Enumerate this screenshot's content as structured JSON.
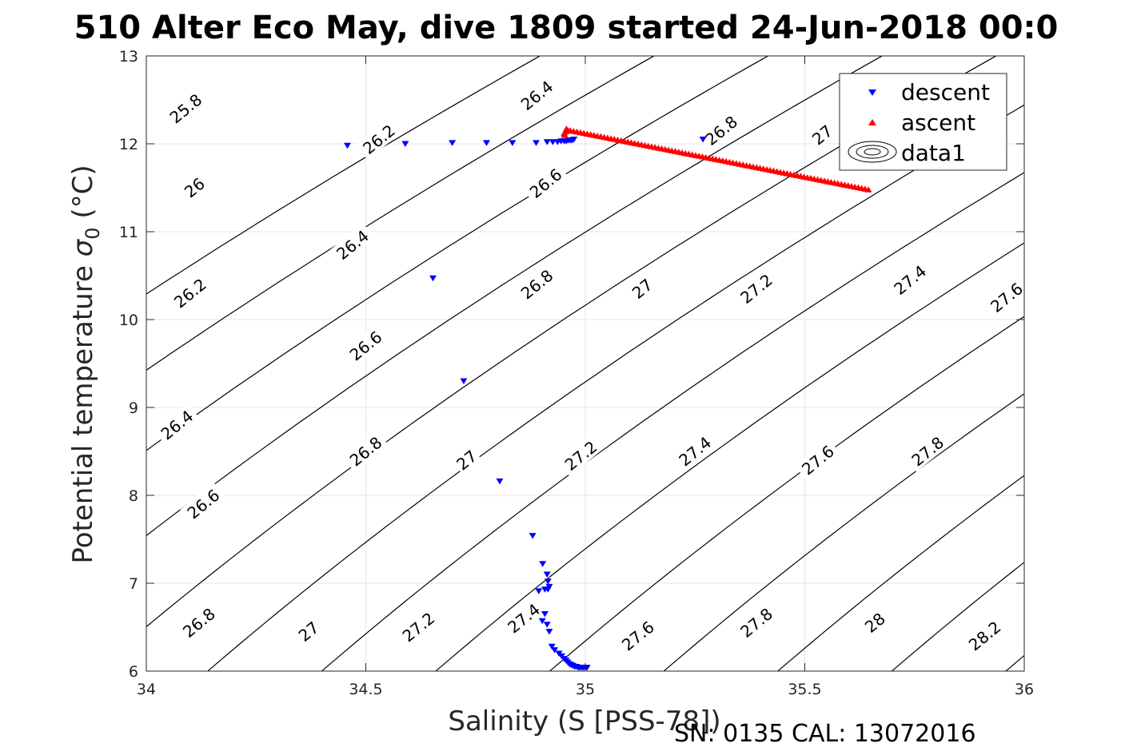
{
  "chart_data": {
    "type": "scatter",
    "title": "510 Alter Eco May, dive 1809 started 24-Jun-2018 00:0",
    "xlabel": "Salinity (S [PSS-78])",
    "ylabel_main": "Potential temperature ",
    "ylabel_sigma": "σ",
    "ylabel_sub": "0",
    "ylabel_unit": " (°C)",
    "footer": "SN: 0135  CAL: 13072016",
    "xlim": [
      34,
      36
    ],
    "ylim": [
      6,
      13
    ],
    "x_ticks": [
      34,
      34.5,
      35,
      35.5,
      36
    ],
    "x_tick_labels": [
      "34",
      "34.5",
      "35",
      "35.5",
      "36"
    ],
    "y_ticks": [
      6,
      7,
      8,
      9,
      10,
      11,
      12,
      13
    ],
    "y_tick_labels": [
      "6",
      "7",
      "8",
      "9",
      "10",
      "11",
      "12",
      "13"
    ],
    "grid": true,
    "legend_position": "top-right",
    "legend": [
      {
        "label": "descent",
        "marker": "triangle-down",
        "color": "#0000ff"
      },
      {
        "label": "ascent",
        "marker": "triangle-up",
        "color": "#ff0000"
      },
      {
        "label": "data1",
        "marker": "contour",
        "color": "#000000"
      }
    ],
    "colors": {
      "descent": "#0000ff",
      "ascent": "#ff0000",
      "contour": "#000000",
      "grid": "#e6e6e6"
    },
    "contour_levels": [
      25.8,
      26.0,
      26.2,
      26.4,
      26.6,
      26.8,
      27.0,
      27.2,
      27.4,
      27.6,
      27.8,
      28.0,
      28.2
    ],
    "contour_labels": [
      {
        "text": "25.8",
        "x": 34.09,
        "y": 12.4
      },
      {
        "text": "26",
        "x": 34.11,
        "y": 11.5
      },
      {
        "text": "26.2",
        "x": 34.53,
        "y": 12.05
      },
      {
        "text": "26.2",
        "x": 34.1,
        "y": 10.3
      },
      {
        "text": "26.4",
        "x": 34.89,
        "y": 12.55
      },
      {
        "text": "26.4",
        "x": 34.47,
        "y": 10.85
      },
      {
        "text": "26.4",
        "x": 34.07,
        "y": 8.8
      },
      {
        "text": "26.6",
        "x": 34.91,
        "y": 11.55
      },
      {
        "text": "26.6",
        "x": 34.5,
        "y": 9.7
      },
      {
        "text": "26.6",
        "x": 34.13,
        "y": 7.9
      },
      {
        "text": "26.8",
        "x": 35.31,
        "y": 12.15
      },
      {
        "text": "26.8",
        "x": 34.89,
        "y": 10.4
      },
      {
        "text": "26.8",
        "x": 34.5,
        "y": 8.5
      },
      {
        "text": "26.8",
        "x": 34.12,
        "y": 6.55
      },
      {
        "text": "27",
        "x": 35.54,
        "y": 12.1
      },
      {
        "text": "27",
        "x": 35.13,
        "y": 10.35
      },
      {
        "text": "27",
        "x": 34.73,
        "y": 8.4
      },
      {
        "text": "27",
        "x": 34.37,
        "y": 6.45
      },
      {
        "text": "27.2",
        "x": 35.39,
        "y": 10.35
      },
      {
        "text": "27.2",
        "x": 34.99,
        "y": 8.45
      },
      {
        "text": "27.2",
        "x": 34.62,
        "y": 6.5
      },
      {
        "text": "27.4",
        "x": 35.74,
        "y": 10.45
      },
      {
        "text": "27.4",
        "x": 35.25,
        "y": 8.5
      },
      {
        "text": "27.4",
        "x": 34.86,
        "y": 6.6
      },
      {
        "text": "27.6",
        "x": 35.96,
        "y": 10.25
      },
      {
        "text": "27.6",
        "x": 35.53,
        "y": 8.4
      },
      {
        "text": "27.6",
        "x": 35.12,
        "y": 6.4
      },
      {
        "text": "27.8",
        "x": 35.78,
        "y": 8.5
      },
      {
        "text": "27.8",
        "x": 35.39,
        "y": 6.55
      },
      {
        "text": "28",
        "x": 35.66,
        "y": 6.55
      },
      {
        "text": "28.2",
        "x": 35.91,
        "y": 6.4
      }
    ],
    "series": [
      {
        "name": "descent",
        "marker": "triangle-down",
        "color": "#0000ff",
        "x": [
          34.458,
          34.59,
          34.697,
          34.775,
          34.834,
          34.888,
          34.913,
          34.926,
          34.937,
          34.945,
          34.952,
          34.957,
          34.962,
          34.966,
          34.97,
          34.974,
          35.268,
          34.653,
          34.723,
          34.805,
          34.88,
          34.903,
          34.913,
          34.915,
          34.918,
          34.915,
          34.908,
          34.894,
          34.908,
          34.902,
          34.913,
          34.918,
          34.924,
          34.93,
          34.94,
          34.946,
          34.952,
          34.956,
          34.96,
          34.964,
          34.968,
          34.972,
          34.976,
          34.98,
          34.984,
          34.988,
          34.992,
          34.996,
          35.0,
          35.004
        ],
        "y": [
          11.98,
          12.0,
          12.01,
          12.01,
          12.01,
          12.01,
          12.02,
          12.02,
          12.02,
          12.03,
          12.03,
          12.03,
          12.04,
          12.04,
          12.04,
          12.05,
          12.05,
          10.47,
          9.3,
          8.16,
          7.54,
          7.22,
          7.1,
          7.02,
          6.96,
          6.93,
          6.93,
          6.91,
          6.65,
          6.57,
          6.53,
          6.45,
          6.28,
          6.24,
          6.2,
          6.17,
          6.14,
          6.12,
          6.1,
          6.08,
          6.07,
          6.06,
          6.05,
          6.05,
          6.04,
          6.04,
          6.04,
          6.04,
          6.04,
          6.04
        ]
      },
      {
        "name": "ascent",
        "marker": "triangle-up",
        "color": "#ff0000",
        "x_start": 34.958,
        "y_start": 12.16,
        "x_end": 35.645,
        "y_end": 11.48,
        "count": 90
      }
    ]
  }
}
